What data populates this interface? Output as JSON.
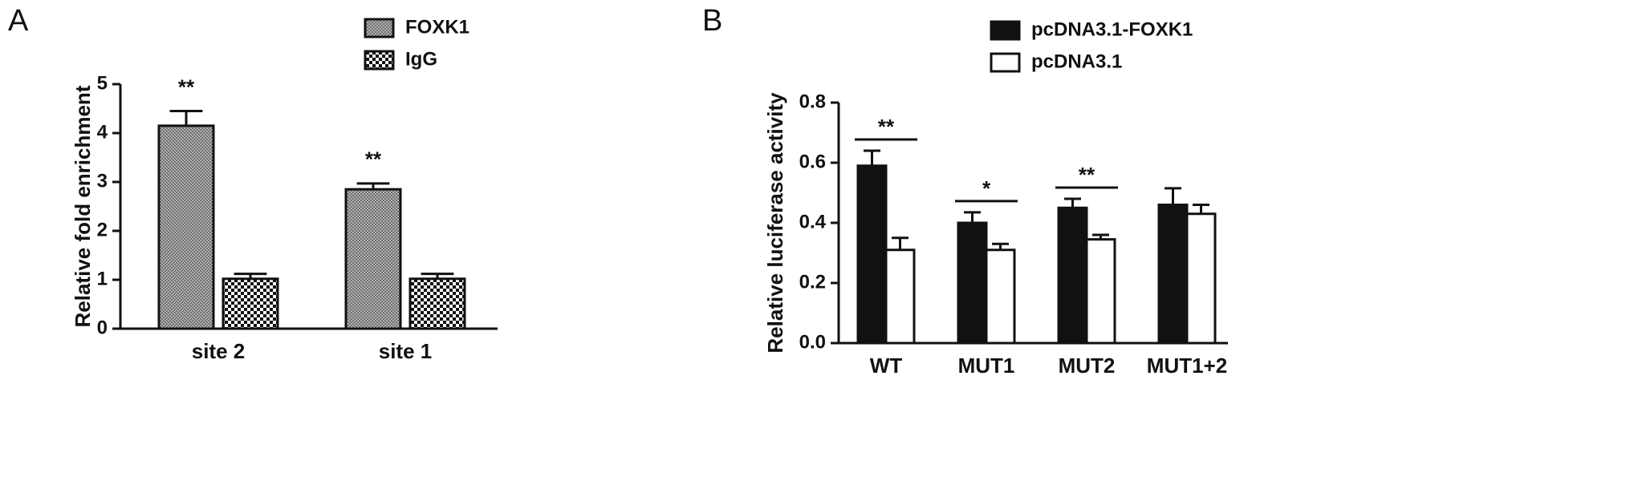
{
  "chart_data": [
    {
      "type": "bar",
      "panel_label": "A",
      "y_label": "Relative fold enrichment",
      "categories": [
        "site 2",
        "site 1"
      ],
      "series": [
        {
          "name": "FOXK1",
          "color": "#8a8a8a",
          "pattern": "crosshatch",
          "values": [
            4.15,
            2.85
          ],
          "errors": [
            0.3,
            0.12
          ]
        },
        {
          "name": "IgG",
          "color": "#000000",
          "pattern": "checker",
          "values": [
            1.02,
            1.02
          ],
          "errors": [
            0.1,
            0.1
          ]
        }
      ],
      "annotations": [
        "**",
        "**"
      ],
      "annotation_lines": false,
      "ylim": [
        0,
        5
      ],
      "yticks": [
        0,
        1,
        2,
        3,
        4,
        5
      ]
    },
    {
      "type": "bar",
      "panel_label": "B",
      "y_label": "Relative luciferase activity",
      "categories": [
        "WT",
        "MUT1",
        "MUT2",
        "MUT1+2"
      ],
      "series": [
        {
          "name": "pcDNA3.1-FOXK1",
          "color": "#111111",
          "pattern": "solid",
          "values": [
            0.59,
            0.4,
            0.45,
            0.46
          ],
          "errors": [
            0.05,
            0.035,
            0.03,
            0.055
          ]
        },
        {
          "name": "pcDNA3.1",
          "color": "#ffffff",
          "pattern": "solid",
          "values": [
            0.31,
            0.31,
            0.345,
            0.43
          ],
          "errors": [
            0.04,
            0.02,
            0.015,
            0.03
          ]
        }
      ],
      "annotations": [
        "**",
        "*",
        "**",
        null
      ],
      "annotation_lines": true,
      "ylim": [
        0,
        0.8
      ],
      "yticks": [
        {
          "value": 0,
          "label": "0.0"
        },
        0.2,
        0.4,
        0.6,
        0.8
      ]
    }
  ]
}
